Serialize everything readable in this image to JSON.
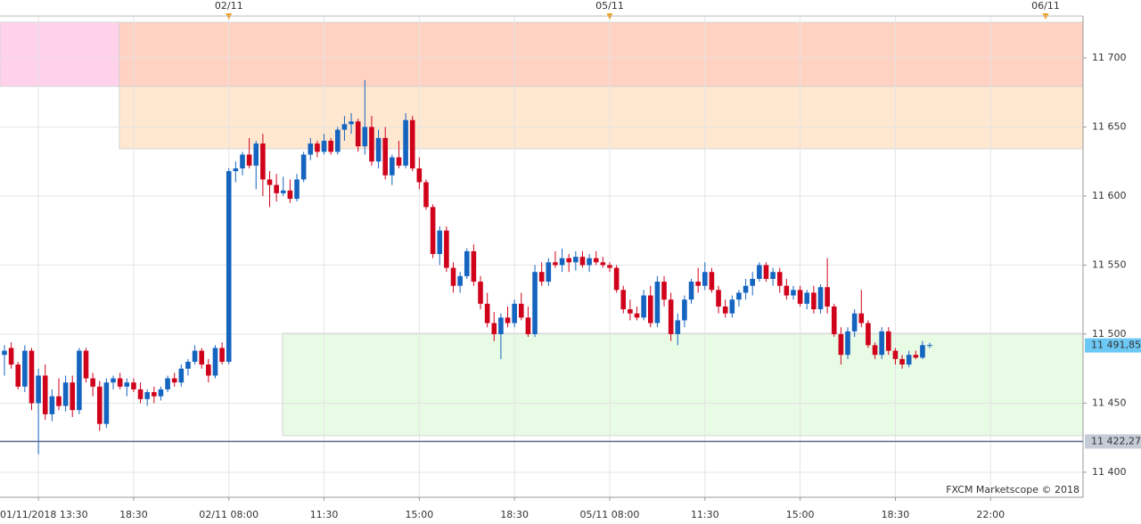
{
  "chart_data": {
    "type": "candlestick",
    "up_color": "#1565c0",
    "down_color": "#d0021b",
    "ylim": [
      11381.9,
      11730.3
    ],
    "yticks": [
      {
        "value": 11400,
        "label": "11 400"
      },
      {
        "value": 11450,
        "label": "11 450"
      },
      {
        "value": 11500,
        "label": "11 500"
      },
      {
        "value": 11550,
        "label": "11 550"
      },
      {
        "value": 11600,
        "label": "11 600"
      },
      {
        "value": 11650,
        "label": "11 650"
      },
      {
        "value": 11700,
        "label": "11 700"
      }
    ],
    "xlim": [
      -0.65,
      158.6
    ],
    "xticks": [
      {
        "value": 5,
        "label": "01/11/2018 13:30"
      },
      {
        "value": 19,
        "label": "18:30"
      },
      {
        "value": 33,
        "label": "02/11 08:00"
      },
      {
        "value": 47,
        "label": "11:30"
      },
      {
        "value": 61,
        "label": "15:00"
      },
      {
        "value": 75,
        "label": "18:30"
      },
      {
        "value": 89,
        "label": "05/11 08:00"
      },
      {
        "value": 103,
        "label": "11:30"
      },
      {
        "value": 117,
        "label": "15:00"
      },
      {
        "value": 131,
        "label": "18:30"
      },
      {
        "value": 145,
        "label": "22:00"
      }
    ],
    "top_markers": [
      {
        "value": 33,
        "label": "02/11"
      },
      {
        "value": 89,
        "label": "05/11"
      },
      {
        "value": 153.1,
        "label": "06/11"
      }
    ],
    "grid": true,
    "zones": [
      {
        "x": [
          -0.65,
          16.9
        ],
        "y": [
          11679.4,
          11725.8
        ],
        "color": "#ffc9e8"
      },
      {
        "x": [
          16.9,
          158.6
        ],
        "y": [
          11679.4,
          11725.8
        ],
        "color": "#ffcbb8"
      },
      {
        "x": [
          16.9,
          158.6
        ],
        "y": [
          11634.2,
          11679.4
        ],
        "color": "#ffe3c8"
      },
      {
        "x": [
          40.9,
          158.6
        ],
        "y": [
          11426.5,
          11500.6
        ],
        "color": "#e4fbe0"
      }
    ],
    "hline": {
      "value": 11422.27,
      "label": "11 422,27"
    },
    "last_price": {
      "value": 11491.85,
      "label": "11 491,85"
    },
    "watermark": "FXCM Marketscope © 2018",
    "x": [
      0,
      1,
      2,
      3,
      4,
      5,
      6,
      7,
      8,
      9,
      10,
      11,
      12,
      13,
      14,
      15,
      16,
      17,
      18,
      19,
      20,
      21,
      22,
      23,
      24,
      25,
      26,
      27,
      28,
      29,
      30,
      31,
      32,
      33,
      34,
      35,
      36,
      37,
      38,
      39,
      40,
      41,
      42,
      43,
      44,
      45,
      46,
      47,
      48,
      49,
      50,
      51,
      52,
      53,
      54,
      55,
      56,
      57,
      58,
      59,
      60,
      61,
      62,
      63,
      64,
      65,
      66,
      67,
      68,
      69,
      70,
      71,
      72,
      73,
      74,
      75,
      76,
      77,
      78,
      79,
      80,
      81,
      82,
      83,
      84,
      85,
      86,
      87,
      88,
      89,
      90,
      91,
      92,
      93,
      94,
      95,
      96,
      97,
      98,
      99,
      100,
      101,
      102,
      103,
      104,
      105,
      106,
      107,
      108,
      109,
      110,
      111,
      112,
      113,
      114,
      115,
      116,
      117,
      118,
      119,
      120,
      121,
      122,
      123,
      124,
      125,
      126,
      127,
      128,
      129,
      130,
      131,
      132,
      133,
      134,
      135
    ],
    "ohlc": [
      [
        11485,
        11492,
        11470,
        11488
      ],
      [
        11490,
        11494,
        11475,
        11478
      ],
      [
        11478,
        11480,
        11460,
        11462
      ],
      [
        11462,
        11492,
        11458,
        11488
      ],
      [
        11488,
        11490,
        11445,
        11450
      ],
      [
        11450,
        11475,
        11413,
        11470
      ],
      [
        11470,
        11478,
        11438,
        11442
      ],
      [
        11442,
        11460,
        11437,
        11455
      ],
      [
        11455,
        11468,
        11445,
        11448
      ],
      [
        11448,
        11470,
        11444,
        11465
      ],
      [
        11465,
        11470,
        11440,
        11445
      ],
      [
        11445,
        11490,
        11442,
        11488
      ],
      [
        11488,
        11490,
        11465,
        11468
      ],
      [
        11468,
        11472,
        11455,
        11462
      ],
      [
        11462,
        11466,
        11430,
        11435
      ],
      [
        11435,
        11468,
        11432,
        11465
      ],
      [
        11465,
        11470,
        11460,
        11468
      ],
      [
        11468,
        11472,
        11460,
        11462
      ],
      [
        11462,
        11468,
        11455,
        11465
      ],
      [
        11465,
        11468,
        11458,
        11460
      ],
      [
        11460,
        11465,
        11450,
        11453
      ],
      [
        11453,
        11460,
        11448,
        11458
      ],
      [
        11458,
        11462,
        11450,
        11455
      ],
      [
        11455,
        11462,
        11452,
        11460
      ],
      [
        11460,
        11470,
        11458,
        11468
      ],
      [
        11468,
        11472,
        11462,
        11465
      ],
      [
        11465,
        11478,
        11462,
        11475
      ],
      [
        11475,
        11482,
        11470,
        11480
      ],
      [
        11480,
        11492,
        11478,
        11488
      ],
      [
        11488,
        11490,
        11475,
        11478
      ],
      [
        11478,
        11482,
        11465,
        11470
      ],
      [
        11470,
        11492,
        11468,
        11490
      ],
      [
        11490,
        11494,
        11478,
        11480
      ],
      [
        11480,
        11620,
        11478,
        11618
      ],
      [
        11618,
        11625,
        11610,
        11620
      ],
      [
        11620,
        11632,
        11615,
        11630
      ],
      [
        11630,
        11642,
        11620,
        11622
      ],
      [
        11622,
        11640,
        11605,
        11638
      ],
      [
        11638,
        11645,
        11600,
        11612
      ],
      [
        11612,
        11618,
        11592,
        11608
      ],
      [
        11608,
        11616,
        11596,
        11602
      ],
      [
        11602,
        11614,
        11600,
        11604
      ],
      [
        11604,
        11612,
        11595,
        11598
      ],
      [
        11598,
        11616,
        11596,
        11612
      ],
      [
        11612,
        11632,
        11610,
        11630
      ],
      [
        11630,
        11642,
        11626,
        11638
      ],
      [
        11638,
        11640,
        11628,
        11632
      ],
      [
        11632,
        11645,
        11630,
        11640
      ],
      [
        11640,
        11642,
        11630,
        11632
      ],
      [
        11632,
        11650,
        11630,
        11648
      ],
      [
        11648,
        11658,
        11640,
        11652
      ],
      [
        11652,
        11660,
        11645,
        11654
      ],
      [
        11654,
        11656,
        11632,
        11636
      ],
      [
        11636,
        11684,
        11630,
        11650
      ],
      [
        11650,
        11658,
        11622,
        11625
      ],
      [
        11625,
        11648,
        11620,
        11642
      ],
      [
        11642,
        11650,
        11612,
        11615
      ],
      [
        11615,
        11630,
        11608,
        11628
      ],
      [
        11628,
        11640,
        11620,
        11622
      ],
      [
        11622,
        11660,
        11620,
        11655
      ],
      [
        11655,
        11658,
        11618,
        11620
      ],
      [
        11620,
        11628,
        11605,
        11610
      ],
      [
        11610,
        11612,
        11590,
        11592
      ],
      [
        11592,
        11594,
        11555,
        11558
      ],
      [
        11558,
        11578,
        11550,
        11575
      ],
      [
        11575,
        11578,
        11545,
        11548
      ],
      [
        11548,
        11552,
        11530,
        11535
      ],
      [
        11535,
        11545,
        11530,
        11542
      ],
      [
        11542,
        11562,
        11540,
        11560
      ],
      [
        11560,
        11565,
        11535,
        11538
      ],
      [
        11538,
        11542,
        11518,
        11522
      ],
      [
        11522,
        11530,
        11505,
        11508
      ],
      [
        11508,
        11516,
        11495,
        11500
      ],
      [
        11500,
        11515,
        11482,
        11512
      ],
      [
        11512,
        11520,
        11505,
        11508
      ],
      [
        11508,
        11525,
        11505,
        11522
      ],
      [
        11522,
        11530,
        11510,
        11512
      ],
      [
        11512,
        11520,
        11498,
        11500
      ],
      [
        11500,
        11550,
        11498,
        11545
      ],
      [
        11545,
        11552,
        11535,
        11538
      ],
      [
        11538,
        11555,
        11535,
        11552
      ],
      [
        11552,
        11560,
        11548,
        11550
      ],
      [
        11550,
        11562,
        11545,
        11555
      ],
      [
        11555,
        11558,
        11545,
        11552
      ],
      [
        11552,
        11560,
        11546,
        11556
      ],
      [
        11556,
        11560,
        11548,
        11550
      ],
      [
        11550,
        11558,
        11545,
        11555
      ],
      [
        11555,
        11560,
        11550,
        11552
      ],
      [
        11552,
        11556,
        11548,
        11550
      ],
      [
        11550,
        11552,
        11545,
        11548
      ],
      [
        11548,
        11550,
        11530,
        11532
      ],
      [
        11532,
        11535,
        11515,
        11518
      ],
      [
        11518,
        11525,
        11510,
        11515
      ],
      [
        11515,
        11520,
        11510,
        11512
      ],
      [
        11512,
        11532,
        11510,
        11528
      ],
      [
        11528,
        11535,
        11505,
        11508
      ],
      [
        11508,
        11542,
        11505,
        11538
      ],
      [
        11538,
        11542,
        11520,
        11525
      ],
      [
        11525,
        11530,
        11495,
        11500
      ],
      [
        11500,
        11515,
        11492,
        11510
      ],
      [
        11510,
        11528,
        11505,
        11525
      ],
      [
        11525,
        11540,
        11522,
        11538
      ],
      [
        11538,
        11548,
        11530,
        11535
      ],
      [
        11535,
        11552,
        11532,
        11545
      ],
      [
        11545,
        11548,
        11530,
        11532
      ],
      [
        11532,
        11535,
        11515,
        11520
      ],
      [
        11520,
        11525,
        11512,
        11515
      ],
      [
        11515,
        11528,
        11512,
        11525
      ],
      [
        11525,
        11532,
        11520,
        11530
      ],
      [
        11530,
        11540,
        11525,
        11535
      ],
      [
        11535,
        11545,
        11528,
        11540
      ],
      [
        11540,
        11552,
        11538,
        11550
      ],
      [
        11550,
        11552,
        11538,
        11540
      ],
      [
        11540,
        11548,
        11535,
        11545
      ],
      [
        11545,
        11548,
        11530,
        11535
      ],
      [
        11535,
        11540,
        11525,
        11528
      ],
      [
        11528,
        11535,
        11525,
        11532
      ],
      [
        11532,
        11535,
        11520,
        11522
      ],
      [
        11522,
        11532,
        11518,
        11530
      ],
      [
        11530,
        11535,
        11515,
        11518
      ],
      [
        11518,
        11536,
        11515,
        11534
      ],
      [
        11534,
        11555,
        11515,
        11520
      ],
      [
        11520,
        11522,
        11498,
        11500
      ],
      [
        11500,
        11505,
        11478,
        11485
      ],
      [
        11485,
        11505,
        11482,
        11502
      ],
      [
        11502,
        11518,
        11498,
        11515
      ],
      [
        11515,
        11532,
        11505,
        11508
      ],
      [
        11508,
        11510,
        11490,
        11492
      ],
      [
        11492,
        11494,
        11482,
        11485
      ],
      [
        11485,
        11505,
        11482,
        11502
      ],
      [
        11502,
        11505,
        11485,
        11488
      ],
      [
        11488,
        11490,
        11478,
        11482
      ],
      [
        11482,
        11485,
        11475,
        11478
      ],
      [
        11478,
        11488,
        11476,
        11485
      ],
      [
        11485,
        11488,
        11482,
        11483
      ],
      [
        11483,
        11495,
        11482,
        11492
      ]
    ]
  }
}
